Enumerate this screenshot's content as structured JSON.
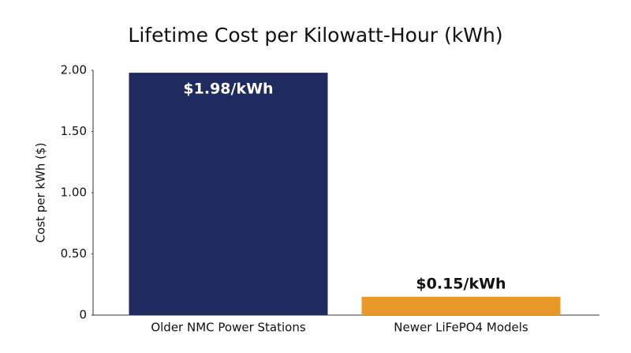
{
  "chart_data": {
    "type": "bar",
    "title": "Lifetime Cost per Kilowatt-Hour (kWh)",
    "y_label": "Cost per kWh ($)",
    "categories": [
      "Older NMC Power Stations",
      "Newer LiFePO4 Models"
    ],
    "values": [
      1.98,
      0.15
    ],
    "value_labels": [
      "$1.98/kWh",
      "$0.15/kWh"
    ],
    "colors": [
      "#1f2b5e",
      "#e79b26"
    ],
    "ylim": [
      0,
      2
    ],
    "yticks": [
      0,
      {
        "value": 0.5,
        "label": "0.50"
      },
      {
        "value": 1,
        "label": "1.00"
      },
      {
        "value": 1.5,
        "label": "1.50"
      },
      {
        "value": 2,
        "label": "2.00"
      }
    ],
    "grid": false
  }
}
